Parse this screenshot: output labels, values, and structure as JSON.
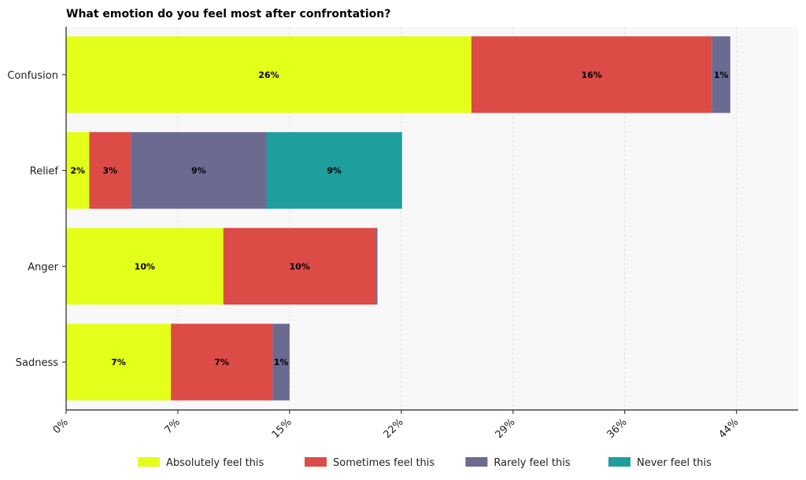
{
  "chart_data": {
    "type": "bar",
    "orientation": "horizontal",
    "stacked": true,
    "title": "What emotion do you feel most after confrontation?",
    "xlabel": "",
    "ylabel": "",
    "categories": [
      "Confusion",
      "Relief",
      "Anger",
      "Sadness"
    ],
    "series": [
      {
        "name": "Absolutely feel this",
        "color": "#e3ff1a",
        "values": [
          26.3,
          1.5,
          10.2,
          6.8
        ]
      },
      {
        "name": "Sometimes feel this",
        "color": "#dd4b47",
        "values": [
          15.6,
          2.7,
          9.9,
          6.6
        ]
      },
      {
        "name": "Rarely feel this",
        "color": "#6b6a91",
        "values": [
          1.2,
          8.8,
          0.1,
          1.1
        ]
      },
      {
        "name": "Never feel this",
        "color": "#1f9e9e",
        "values": [
          0,
          8.8,
          0,
          0
        ]
      }
    ],
    "data_labels": [
      [
        "26%",
        "16%",
        "1%",
        ""
      ],
      [
        "2%",
        "3%",
        "9%",
        "9%"
      ],
      [
        "10%",
        "10%",
        "",
        ""
      ],
      [
        "7%",
        "7%",
        "1%",
        ""
      ]
    ],
    "xticks": [
      0,
      7.25,
      14.5,
      21.75,
      29,
      36.25,
      43.5
    ],
    "xtick_labels": [
      "0%",
      "7%",
      "15%",
      "22%",
      "29%",
      "36%",
      "44%"
    ],
    "xlim": [
      0,
      47.5
    ],
    "grid": {
      "x": true,
      "y": false
    },
    "legend": {
      "position": "bottom"
    },
    "background": "#f8f8f8"
  }
}
